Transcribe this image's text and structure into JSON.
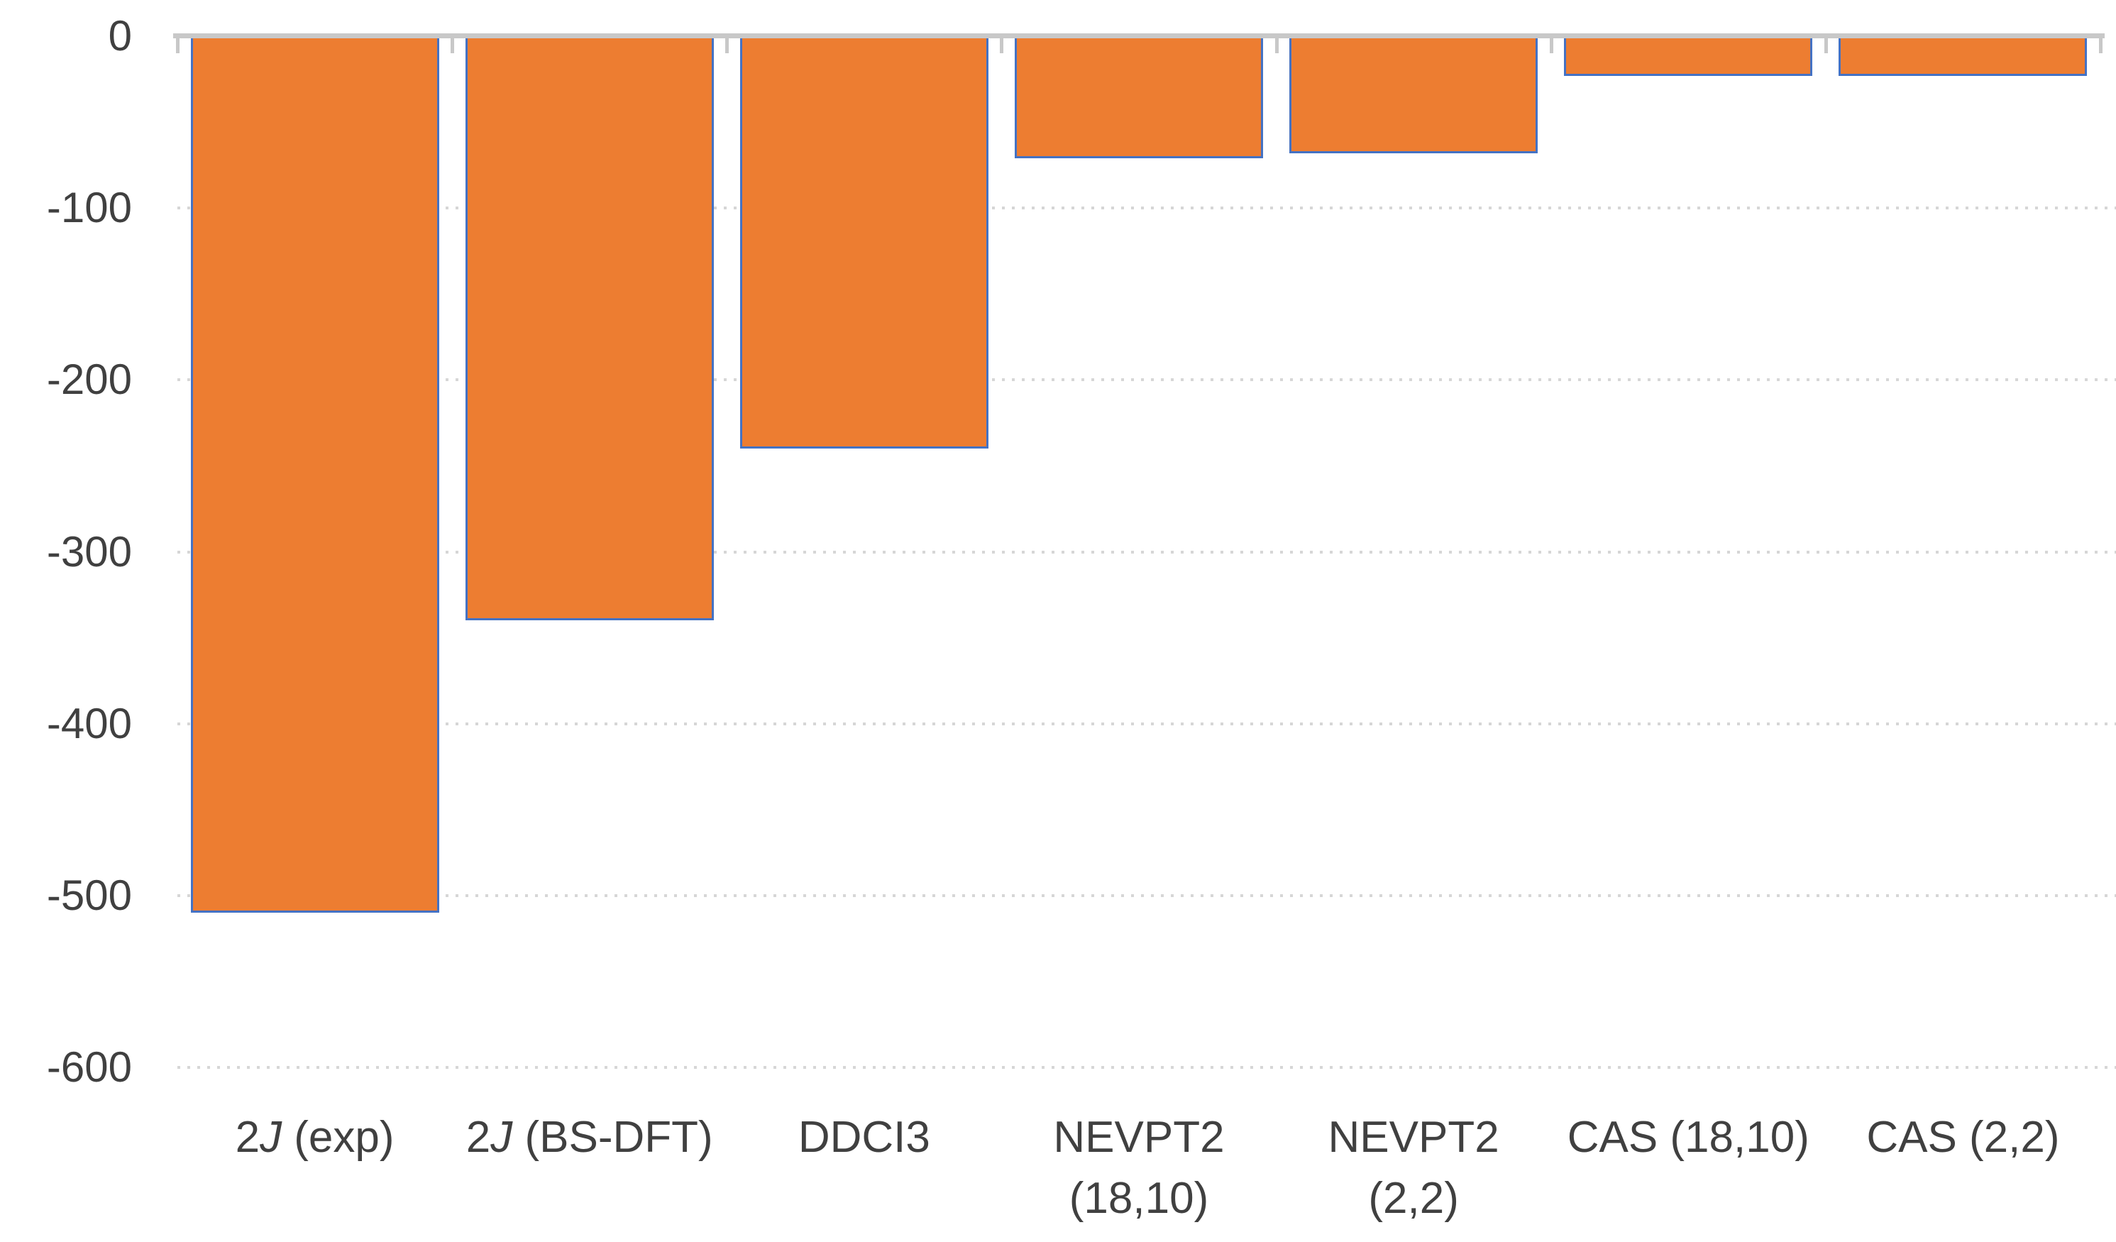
{
  "chart_data": {
    "type": "bar",
    "title": "",
    "xlabel": "",
    "ylabel": "",
    "categories": [
      "2J (exp)",
      "2J (BS-DFT)",
      "DDCI3",
      "NEVPT2 (18,10)",
      "NEVPT2 (2,2)",
      "CAS (18,10)",
      "CAS (2,2)"
    ],
    "values": [
      -510,
      -340,
      -240,
      -71,
      -68,
      -23,
      -23
    ],
    "ylim": [
      -600,
      0
    ],
    "y_ticks": [
      0,
      -100,
      -200,
      -300,
      -400,
      -500,
      -600
    ],
    "y_tick_labels": [
      "0",
      "-100",
      "-200",
      "-300",
      "-400",
      "-500",
      "-600"
    ],
    "grid": "horizontal-dotted",
    "legend_position": "none",
    "category_labels_render": [
      {
        "pre": "2",
        "italic": "J",
        "post": " (exp)",
        "line2": ""
      },
      {
        "pre": "2",
        "italic": "J",
        "post": " (BS-DFT)",
        "line2": ""
      },
      {
        "pre": "",
        "italic": "",
        "post": "DDCI3",
        "line2": ""
      },
      {
        "pre": "",
        "italic": "",
        "post": "NEVPT2",
        "line2": "(18,10)"
      },
      {
        "pre": "",
        "italic": "",
        "post": "NEVPT2",
        "line2": "(2,2)"
      },
      {
        "pre": "",
        "italic": "",
        "post": "CAS (18,10)",
        "line2": ""
      },
      {
        "pre": "",
        "italic": "",
        "post": "CAS (2,2)",
        "line2": ""
      }
    ],
    "colors": {
      "bar_fill": "#ED7D31",
      "bar_border": "#4472C4",
      "gridline": "#D6D6D6",
      "axis_line": "#C8C8C8",
      "text": "#404040",
      "background": "#FFFFFF"
    }
  }
}
